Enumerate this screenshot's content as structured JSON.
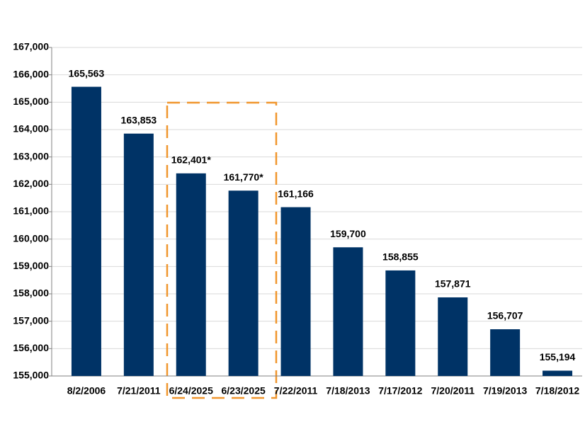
{
  "chart_data": {
    "type": "bar",
    "categories": [
      "8/2/2006",
      "7/21/2011",
      "6/24/2025",
      "6/23/2025",
      "7/22/2011",
      "7/18/2013",
      "7/17/2012",
      "7/20/2011",
      "7/19/2013",
      "7/18/2012"
    ],
    "values": [
      165563,
      163853,
      162401,
      161770,
      161166,
      159700,
      158855,
      157871,
      156707,
      155194
    ],
    "value_labels": [
      "165,563",
      "163,853",
      "162,401*",
      "161,770*",
      "161,166",
      "159,700",
      "158,855",
      "157,871",
      "156,707",
      "155,194"
    ],
    "color": "#003366",
    "ylim": [
      155000,
      167000
    ],
    "yticks": [
      {
        "value": 155000,
        "label": "155,000"
      },
      {
        "value": 156000,
        "label": "156,000"
      },
      {
        "value": 157000,
        "label": "157,000"
      },
      {
        "value": 158000,
        "label": "158,000"
      },
      {
        "value": 159000,
        "label": "159,000"
      },
      {
        "value": 160000,
        "label": "160,000"
      },
      {
        "value": 161000,
        "label": "161,000"
      },
      {
        "value": 162000,
        "label": "162,000"
      },
      {
        "value": 163000,
        "label": "163,000"
      },
      {
        "value": 164000,
        "label": "164,000"
      },
      {
        "value": 165000,
        "label": "165,000"
      },
      {
        "value": 166000,
        "label": "166,000"
      },
      {
        "value": 167000,
        "label": "167,000"
      }
    ],
    "grid": true
  }
}
